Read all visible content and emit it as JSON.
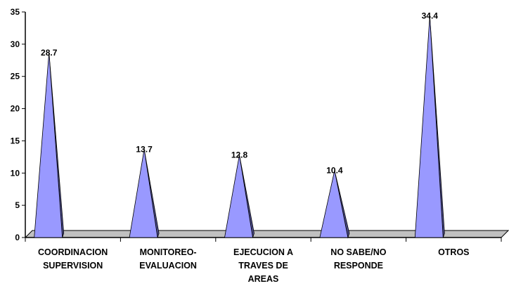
{
  "chart_data": {
    "type": "bar",
    "bar_shape": "pyramid-3d",
    "categories": [
      [
        "COORDINACION",
        "SUPERVISION"
      ],
      [
        "MONITOREO-",
        "EVALUACION"
      ],
      [
        "EJECUCION A",
        "TRAVES DE",
        "AREAS"
      ],
      [
        "NO SABE/NO",
        "RESPONDE"
      ],
      [
        "OTROS"
      ]
    ],
    "values": [
      28.7,
      13.7,
      12.8,
      10.4,
      34.4
    ],
    "value_labels": [
      "28.7",
      "13.7",
      "12.8",
      "10.4",
      "34.4"
    ],
    "ylim": [
      0,
      35
    ],
    "yticks": [
      0,
      5,
      10,
      15,
      20,
      25,
      30,
      35
    ],
    "grid": false,
    "legend": false,
    "title": "",
    "xlabel": "",
    "ylabel": "",
    "colors": {
      "face": "#9999ff",
      "side": "#4d4d8c",
      "floor": "#c0c0c0",
      "axis": "#000000"
    }
  }
}
